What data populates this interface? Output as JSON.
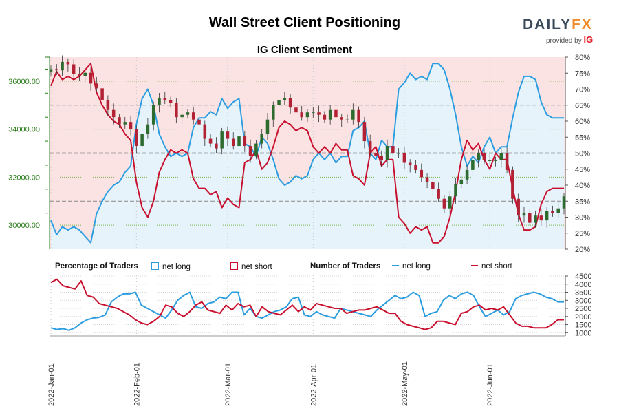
{
  "header": {
    "title": "Wall Street Client Positioning",
    "subtitle": "IG Client Sentiment",
    "logo_main_a": "DAILY",
    "logo_main_b": "FX",
    "logo_sub": "provided by",
    "logo_ig": "IG"
  },
  "legend": {
    "pct_label": "Percentage of Traders",
    "num_label": "Number of Traders",
    "net_long": "net long",
    "net_short": "net short"
  },
  "colors": {
    "long": "#2b9de0",
    "short": "#c8102e",
    "candle_up": "#2e6b2e",
    "candle_down": "#b22234",
    "bg_short": "#fbe3e3",
    "bg_long": "#e6f3fb",
    "price_axis": "#2e7d1e"
  },
  "chart_data": [
    {
      "type": "line",
      "title": "IG Client Sentiment",
      "ylim_price": [
        29000,
        37000
      ],
      "ylim_pct": [
        20,
        80
      ],
      "price_ticks": [
        "30000.00",
        "32000.00",
        "34000.00",
        "36000.00"
      ],
      "pct_ticks": [
        "20%",
        "25%",
        "30%",
        "35%",
        "40%",
        "45%",
        "50%",
        "55%",
        "60%",
        "65%",
        "70%",
        "75%",
        "80%"
      ],
      "x_ticks": [
        "2022-Jan-01",
        "2022-Feb-01",
        "2022-Mar-01",
        "2022-Apr-01",
        "2022-May-01",
        "2022-Jun-01"
      ],
      "price_close": [
        36500,
        36450,
        36800,
        36700,
        36300,
        36200,
        36350,
        35900,
        35700,
        35200,
        34800,
        34500,
        34200,
        34300,
        34000,
        33300,
        33800,
        34200,
        35000,
        35300,
        35200,
        35100,
        34500,
        34600,
        34700,
        34400,
        34200,
        33600,
        33400,
        33200,
        33900,
        33600,
        33300,
        33700,
        33300,
        32900,
        33400,
        33800,
        34400,
        35000,
        35200,
        35300,
        34900,
        34700,
        34500,
        34700,
        34700,
        34600,
        34400,
        34800,
        34500,
        34400,
        34400,
        34800,
        34300,
        33500,
        33000,
        32900,
        32700,
        33300,
        33000,
        33000,
        32600,
        32500,
        32300,
        32000,
        31800,
        31500,
        31100,
        30700,
        31200,
        31700,
        31900,
        32300,
        32700,
        33000,
        32700,
        32700,
        32700,
        33000,
        32300,
        31100,
        30400,
        30500,
        30100,
        30400,
        30200,
        30600,
        30500,
        30700,
        31200
      ],
      "pct_long": [
        29,
        24.5,
        27,
        26,
        27,
        26,
        24,
        22,
        31,
        35,
        38,
        40,
        41,
        44,
        46,
        59,
        67,
        70,
        65,
        56,
        52,
        49,
        50,
        49,
        50,
        58,
        61,
        61,
        63,
        62,
        67,
        64,
        66,
        67,
        53,
        52,
        49,
        55,
        53,
        48,
        42,
        40,
        41,
        43,
        42,
        43,
        48,
        50,
        48,
        50,
        47,
        49,
        49,
        57,
        58,
        60,
        50,
        48,
        54,
        52,
        52,
        70,
        72,
        75,
        73,
        74,
        73,
        78,
        78,
        76,
        70,
        62,
        52,
        46,
        49,
        47,
        52,
        55,
        50,
        52,
        52,
        61,
        69,
        74,
        74,
        73,
        66,
        62,
        61,
        61,
        61
      ],
      "pct_short": [
        71,
        75.5,
        73,
        74,
        73,
        74,
        76,
        78,
        69,
        65,
        62,
        60,
        59,
        56,
        54,
        41,
        33,
        30,
        35,
        44,
        48,
        51,
        50,
        51,
        50,
        42,
        39,
        39,
        37,
        38,
        33,
        36,
        34,
        33,
        47,
        48,
        51,
        45,
        47,
        52,
        58,
        60,
        59,
        57,
        58,
        57,
        52,
        50,
        52,
        50,
        53,
        51,
        51,
        43,
        42,
        40,
        50,
        52,
        46,
        48,
        48,
        30,
        28,
        25,
        27,
        26,
        27,
        22,
        22,
        24,
        30,
        38,
        48,
        54,
        51,
        53,
        48,
        45,
        50,
        48,
        48,
        39,
        31,
        26,
        26,
        27,
        34,
        38,
        39,
        39,
        39
      ]
    },
    {
      "type": "line",
      "title": "Number of Traders",
      "ylim": [
        800,
        4500
      ],
      "y_ticks": [
        "1000",
        "1500",
        "2000",
        "2500",
        "3000",
        "3500",
        "4000",
        "4500"
      ],
      "net_long": [
        1300,
        1200,
        1250,
        1150,
        1300,
        1600,
        1800,
        1900,
        1950,
        2100,
        2900,
        3200,
        3400,
        3400,
        3500,
        2700,
        2500,
        2300,
        2100,
        1900,
        2400,
        3000,
        3300,
        3500,
        2600,
        2500,
        2800,
        2900,
        3200,
        3100,
        3500,
        3500,
        2100,
        2500,
        2000,
        1900,
        2100,
        2300,
        2400,
        2600,
        3100,
        3200,
        2100,
        2000,
        2300,
        2100,
        2000,
        1900,
        2500,
        2400,
        2300,
        2200,
        2100,
        2000,
        2400,
        2700,
        3000,
        3300,
        3100,
        3200,
        3500,
        3300,
        2000,
        2200,
        2300,
        3000,
        3300,
        3100,
        3400,
        3500,
        3300,
        2600,
        2000,
        2200,
        2400,
        2100,
        2300,
        3100,
        3300,
        3400,
        3500,
        3400,
        3200,
        3100,
        2900,
        2900
      ],
      "net_short": [
        4100,
        4300,
        3900,
        3800,
        3700,
        4200,
        3300,
        3200,
        2800,
        2700,
        2600,
        2500,
        2300,
        2100,
        1800,
        1600,
        1500,
        1700,
        2000,
        2700,
        2600,
        2200,
        2000,
        2300,
        2700,
        2900,
        2400,
        2300,
        2200,
        2700,
        2400,
        2800,
        2600,
        2700,
        2000,
        2600,
        2300,
        2200,
        2100,
        2400,
        2700,
        2300,
        2600,
        2400,
        2800,
        2700,
        2600,
        2500,
        2500,
        2200,
        2300,
        2400,
        2400,
        2500,
        2600,
        2400,
        2200,
        2200,
        1700,
        1500,
        1400,
        1300,
        1200,
        1300,
        1700,
        1700,
        1600,
        1500,
        2200,
        2300,
        2600,
        2700,
        2400,
        2500,
        2400,
        2600,
        2100,
        1600,
        1400,
        1400,
        1300,
        1300,
        1300,
        1500,
        1800,
        1800
      ]
    }
  ]
}
